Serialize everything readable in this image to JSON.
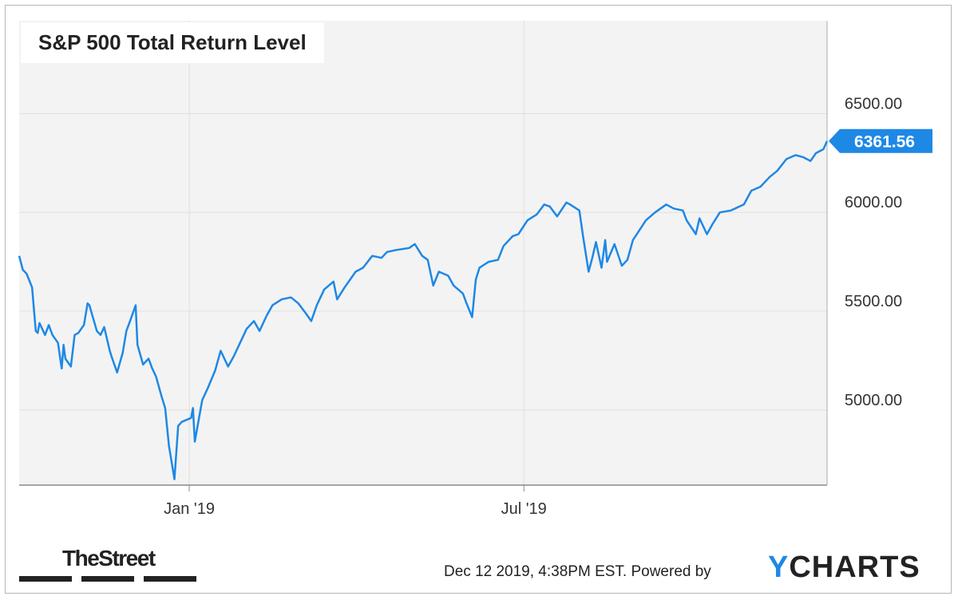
{
  "chart_data": {
    "type": "line",
    "title": "S&P 500 Total Return Level",
    "xlabel": "",
    "ylabel": "",
    "x_ticks": [
      "Jan '19",
      "Jul '19"
    ],
    "y_ticks": [
      "5000.00",
      "5500.00",
      "6000.00",
      "6500.00"
    ],
    "ylim": [
      4620,
      6970
    ],
    "grid": true,
    "last_value_label": "6361.56",
    "series": [
      {
        "color": "#1e88e5",
        "x": [
          "2018-10-01",
          "2018-10-03",
          "2018-10-05",
          "2018-10-08",
          "2018-10-10",
          "2018-10-11",
          "2018-10-12",
          "2018-10-15",
          "2018-10-17",
          "2018-10-19",
          "2018-10-22",
          "2018-10-24",
          "2018-10-25",
          "2018-10-26",
          "2018-10-29",
          "2018-10-31",
          "2018-11-02",
          "2018-11-05",
          "2018-11-07",
          "2018-11-08",
          "2018-11-12",
          "2018-11-14",
          "2018-11-16",
          "2018-11-19",
          "2018-11-20",
          "2018-11-23",
          "2018-11-26",
          "2018-11-28",
          "2018-11-30",
          "2018-12-03",
          "2018-12-04",
          "2018-12-07",
          "2018-12-10",
          "2018-12-12",
          "2018-12-14",
          "2018-12-17",
          "2018-12-19",
          "2018-12-21",
          "2018-12-24",
          "2018-12-26",
          "2018-12-28",
          "2019-01-02",
          "2019-01-03",
          "2019-01-04",
          "2019-01-08",
          "2019-01-11",
          "2019-01-15",
          "2019-01-18",
          "2019-01-22",
          "2019-01-25",
          "2019-01-30",
          "2019-02-01",
          "2019-02-05",
          "2019-02-08",
          "2019-02-12",
          "2019-02-15",
          "2019-02-20",
          "2019-02-25",
          "2019-03-01",
          "2019-03-05",
          "2019-03-08",
          "2019-03-11",
          "2019-03-15",
          "2019-03-20",
          "2019-03-22",
          "2019-03-26",
          "2019-04-01",
          "2019-04-05",
          "2019-04-10",
          "2019-04-15",
          "2019-04-18",
          "2019-04-23",
          "2019-04-30",
          "2019-05-03",
          "2019-05-07",
          "2019-05-10",
          "2019-05-13",
          "2019-05-16",
          "2019-05-21",
          "2019-05-24",
          "2019-05-29",
          "2019-05-31",
          "2019-06-03",
          "2019-06-05",
          "2019-06-07",
          "2019-06-12",
          "2019-06-17",
          "2019-06-20",
          "2019-06-25",
          "2019-06-28",
          "2019-07-03",
          "2019-07-08",
          "2019-07-12",
          "2019-07-15",
          "2019-07-19",
          "2019-07-24",
          "2019-07-26",
          "2019-07-31",
          "2019-08-02",
          "2019-08-05",
          "2019-08-07",
          "2019-08-09",
          "2019-08-12",
          "2019-08-14",
          "2019-08-15",
          "2019-08-19",
          "2019-08-23",
          "2019-08-26",
          "2019-08-29",
          "2019-09-05",
          "2019-09-10",
          "2019-09-16",
          "2019-09-20",
          "2019-09-25",
          "2019-09-27",
          "2019-10-02",
          "2019-10-04",
          "2019-10-08",
          "2019-10-11",
          "2019-10-15",
          "2019-10-21",
          "2019-10-28",
          "2019-11-01",
          "2019-11-06",
          "2019-11-11",
          "2019-11-15",
          "2019-11-20",
          "2019-11-25",
          "2019-11-29",
          "2019-12-03",
          "2019-12-06",
          "2019-12-10",
          "2019-12-12"
        ],
        "values": [
          5780,
          5710,
          5690,
          5620,
          5400,
          5390,
          5440,
          5380,
          5430,
          5380,
          5340,
          5210,
          5330,
          5260,
          5220,
          5380,
          5390,
          5430,
          5540,
          5530,
          5400,
          5380,
          5420,
          5300,
          5270,
          5190,
          5290,
          5400,
          5450,
          5530,
          5330,
          5230,
          5260,
          5210,
          5170,
          5070,
          5010,
          4820,
          4650,
          4920,
          4940,
          4960,
          5010,
          4840,
          5050,
          5110,
          5200,
          5300,
          5220,
          5270,
          5370,
          5410,
          5450,
          5400,
          5480,
          5530,
          5560,
          5570,
          5540,
          5490,
          5450,
          5530,
          5610,
          5650,
          5560,
          5620,
          5700,
          5720,
          5780,
          5770,
          5800,
          5810,
          5820,
          5840,
          5780,
          5760,
          5630,
          5700,
          5680,
          5630,
          5590,
          5540,
          5470,
          5660,
          5720,
          5750,
          5760,
          5830,
          5880,
          5890,
          5960,
          5990,
          6040,
          6030,
          5980,
          6050,
          6040,
          6010,
          5880,
          5700,
          5770,
          5850,
          5720,
          5860,
          5750,
          5840,
          5730,
          5760,
          5860,
          5960,
          6000,
          6040,
          6020,
          6010,
          5960,
          5890,
          5970,
          5890,
          5940,
          6000,
          6010,
          6040,
          6110,
          6130,
          6180,
          6210,
          6270,
          6290,
          6280,
          6260,
          6300,
          6320,
          6361.56
        ]
      }
    ]
  },
  "footer": {
    "timestamp": "Dec 12 2019, 4:38PM EST.",
    "powered_by": "Powered by",
    "brand_first": "Y",
    "brand_rest": "CHARTS",
    "logo_left": "TheStreet"
  }
}
